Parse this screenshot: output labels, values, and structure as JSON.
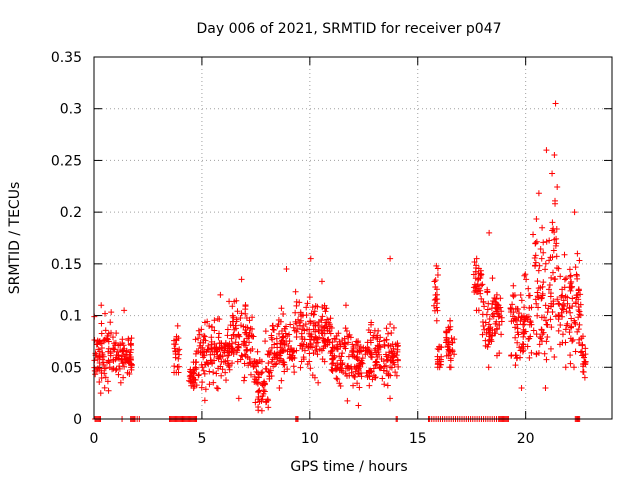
{
  "chart_data": {
    "type": "scatter",
    "title": "Day 006 of 2021, SRMTID for receiver p047",
    "xlabel": "GPS time / hours",
    "ylabel": "SRMTID / TECUs",
    "xlim": [
      0,
      24
    ],
    "ylim": [
      0,
      0.35
    ],
    "xticks": [
      0,
      5,
      10,
      15,
      20
    ],
    "xtick_labels": [
      "0",
      "5",
      "10",
      "15",
      "20"
    ],
    "yticks": [
      0,
      0.05,
      0.1,
      0.15,
      0.2,
      0.25,
      0.3,
      0.35
    ],
    "ytick_labels": [
      "0",
      "0.05",
      "0.1",
      "0.15",
      "0.2",
      "0.25",
      "0.3",
      "0.35"
    ],
    "grid": true,
    "marker": "plus",
    "color": "#ff0000",
    "segments": [
      {
        "start": 0.0,
        "end": 0.85,
        "mean": 0.062,
        "spread": 0.016,
        "max": 0.11,
        "min": 0.025
      },
      {
        "start": 0.85,
        "end": 1.75,
        "mean": 0.062,
        "spread": 0.011,
        "max": 0.105,
        "min": 0.035
      },
      {
        "start": 3.7,
        "end": 3.95,
        "mean": 0.065,
        "spread": 0.011,
        "max": 0.09,
        "min": 0.045
      },
      {
        "start": 4.4,
        "end": 4.7,
        "mean": 0.04,
        "spread": 0.006,
        "max": 0.055,
        "min": 0.03
      },
      {
        "start": 4.7,
        "end": 6.3,
        "mean": 0.065,
        "spread": 0.017,
        "max": 0.12,
        "min": 0.018
      },
      {
        "start": 6.3,
        "end": 7.4,
        "mean": 0.078,
        "spread": 0.016,
        "max": 0.135,
        "min": 0.02
      },
      {
        "start": 7.4,
        "end": 8.2,
        "mean": 0.042,
        "spread": 0.014,
        "max": 0.085,
        "min": 0.008
      },
      {
        "start": 8.2,
        "end": 9.3,
        "mean": 0.072,
        "spread": 0.015,
        "max": 0.145,
        "min": 0.03
      },
      {
        "start": 9.3,
        "end": 11.0,
        "mean": 0.082,
        "spread": 0.017,
        "max": 0.155,
        "min": 0.035
      },
      {
        "start": 11.0,
        "end": 12.8,
        "mean": 0.058,
        "spread": 0.013,
        "max": 0.11,
        "min": 0.013
      },
      {
        "start": 12.8,
        "end": 14.1,
        "mean": 0.062,
        "spread": 0.015,
        "max": 0.155,
        "min": 0.02
      },
      {
        "start": 15.75,
        "end": 15.95,
        "mean": 0.12,
        "spread": 0.015,
        "max": 0.148,
        "min": 0.095
      },
      {
        "start": 15.9,
        "end": 16.1,
        "mean": 0.06,
        "spread": 0.006,
        "max": 0.07,
        "min": 0.05
      },
      {
        "start": 16.3,
        "end": 16.7,
        "mean": 0.072,
        "spread": 0.011,
        "max": 0.095,
        "min": 0.05
      },
      {
        "start": 17.6,
        "end": 18.0,
        "mean": 0.13,
        "spread": 0.012,
        "max": 0.155,
        "min": 0.105
      },
      {
        "start": 18.0,
        "end": 18.9,
        "mean": 0.1,
        "spread": 0.018,
        "max": 0.18,
        "min": 0.05
      },
      {
        "start": 19.3,
        "end": 20.3,
        "mean": 0.09,
        "spread": 0.018,
        "max": 0.14,
        "min": 0.03
      },
      {
        "start": 20.3,
        "end": 21.2,
        "mean": 0.125,
        "spread": 0.038,
        "max": 0.26,
        "min": 0.03
      },
      {
        "start": 21.2,
        "end": 21.5,
        "mean": 0.17,
        "spread": 0.05,
        "max": 0.305,
        "min": 0.06
      },
      {
        "start": 21.5,
        "end": 22.6,
        "mean": 0.11,
        "spread": 0.025,
        "max": 0.2,
        "min": 0.05
      },
      {
        "start": 22.6,
        "end": 22.8,
        "mean": 0.06,
        "spread": 0.01,
        "max": 0.08,
        "min": 0.04
      }
    ],
    "zero_points": [
      0.05,
      0.1,
      0.15,
      0.2,
      0.25,
      0.3,
      1.3,
      1.7,
      1.75,
      1.8,
      1.85,
      1.9,
      2.0,
      2.1,
      3.5,
      3.55,
      3.6,
      3.65,
      3.7,
      3.75,
      3.8,
      3.85,
      3.9,
      3.95,
      4.0,
      4.05,
      4.1,
      4.15,
      4.2,
      4.25,
      4.3,
      4.35,
      4.4,
      4.45,
      4.5,
      4.55,
      4.6,
      4.65,
      4.7,
      4.75,
      9.35,
      9.4,
      9.45,
      14.0,
      14.05,
      15.5,
      15.55,
      15.65,
      15.75,
      15.85,
      15.95,
      16.05,
      16.15,
      16.25,
      16.35,
      16.45,
      16.55,
      16.65,
      16.75,
      16.85,
      16.95,
      17.05,
      17.15,
      17.25,
      17.35,
      17.45,
      17.55,
      17.65,
      17.75,
      17.85,
      17.95,
      18.05,
      18.15,
      18.25,
      18.35,
      18.45,
      18.55,
      18.65,
      18.75,
      18.8,
      18.85,
      18.9,
      18.95,
      19.0,
      19.05,
      19.1,
      19.15,
      19.2,
      22.3,
      22.35,
      22.4,
      22.45,
      22.5
    ]
  }
}
